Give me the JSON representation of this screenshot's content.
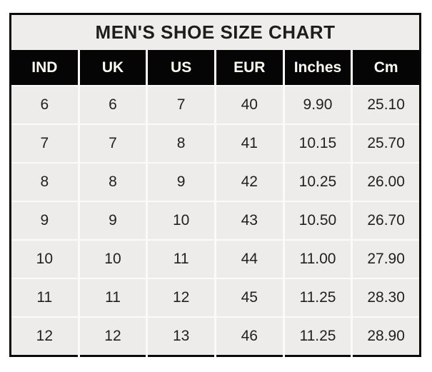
{
  "title": "MEN'S SHOE SIZE CHART",
  "table": {
    "columns": [
      "IND",
      "UK",
      "US",
      "EUR",
      "Inches",
      "Cm"
    ],
    "rows": [
      [
        "6",
        "6",
        "7",
        "40",
        "9.90",
        "25.10"
      ],
      [
        "7",
        "7",
        "8",
        "41",
        "10.15",
        "25.70"
      ],
      [
        "8",
        "8",
        "9",
        "42",
        "10.25",
        "26.00"
      ],
      [
        "9",
        "9",
        "10",
        "43",
        "10.50",
        "26.70"
      ],
      [
        "10",
        "10",
        "11",
        "44",
        "11.00",
        "27.90"
      ],
      [
        "11",
        "11",
        "12",
        "45",
        "11.25",
        "28.30"
      ],
      [
        "12",
        "12",
        "13",
        "46",
        "11.25",
        "28.90"
      ]
    ]
  },
  "colors": {
    "page_bg": "#ffffff",
    "outer_border": "#0a0a0a",
    "title_bg": "#eeedeb",
    "title_text": "#1d1d1d",
    "header_bg": "#050505",
    "header_text": "#fdfcf2",
    "cell_bg": "#edecea",
    "grid_line": "#fbfaf8",
    "cell_text": "#212121"
  },
  "chart_data": {
    "type": "table",
    "title": "MEN'S SHOE SIZE CHART",
    "columns": [
      "IND",
      "UK",
      "US",
      "EUR",
      "Inches",
      "Cm"
    ],
    "rows": [
      [
        6,
        6,
        7,
        40,
        9.9,
        25.1
      ],
      [
        7,
        7,
        8,
        41,
        10.15,
        25.7
      ],
      [
        8,
        8,
        9,
        42,
        10.25,
        26.0
      ],
      [
        9,
        9,
        10,
        43,
        10.5,
        26.7
      ],
      [
        10,
        10,
        11,
        44,
        11.0,
        27.9
      ],
      [
        11,
        11,
        12,
        45,
        11.25,
        28.3
      ],
      [
        12,
        12,
        13,
        46,
        11.25,
        28.9
      ]
    ]
  }
}
